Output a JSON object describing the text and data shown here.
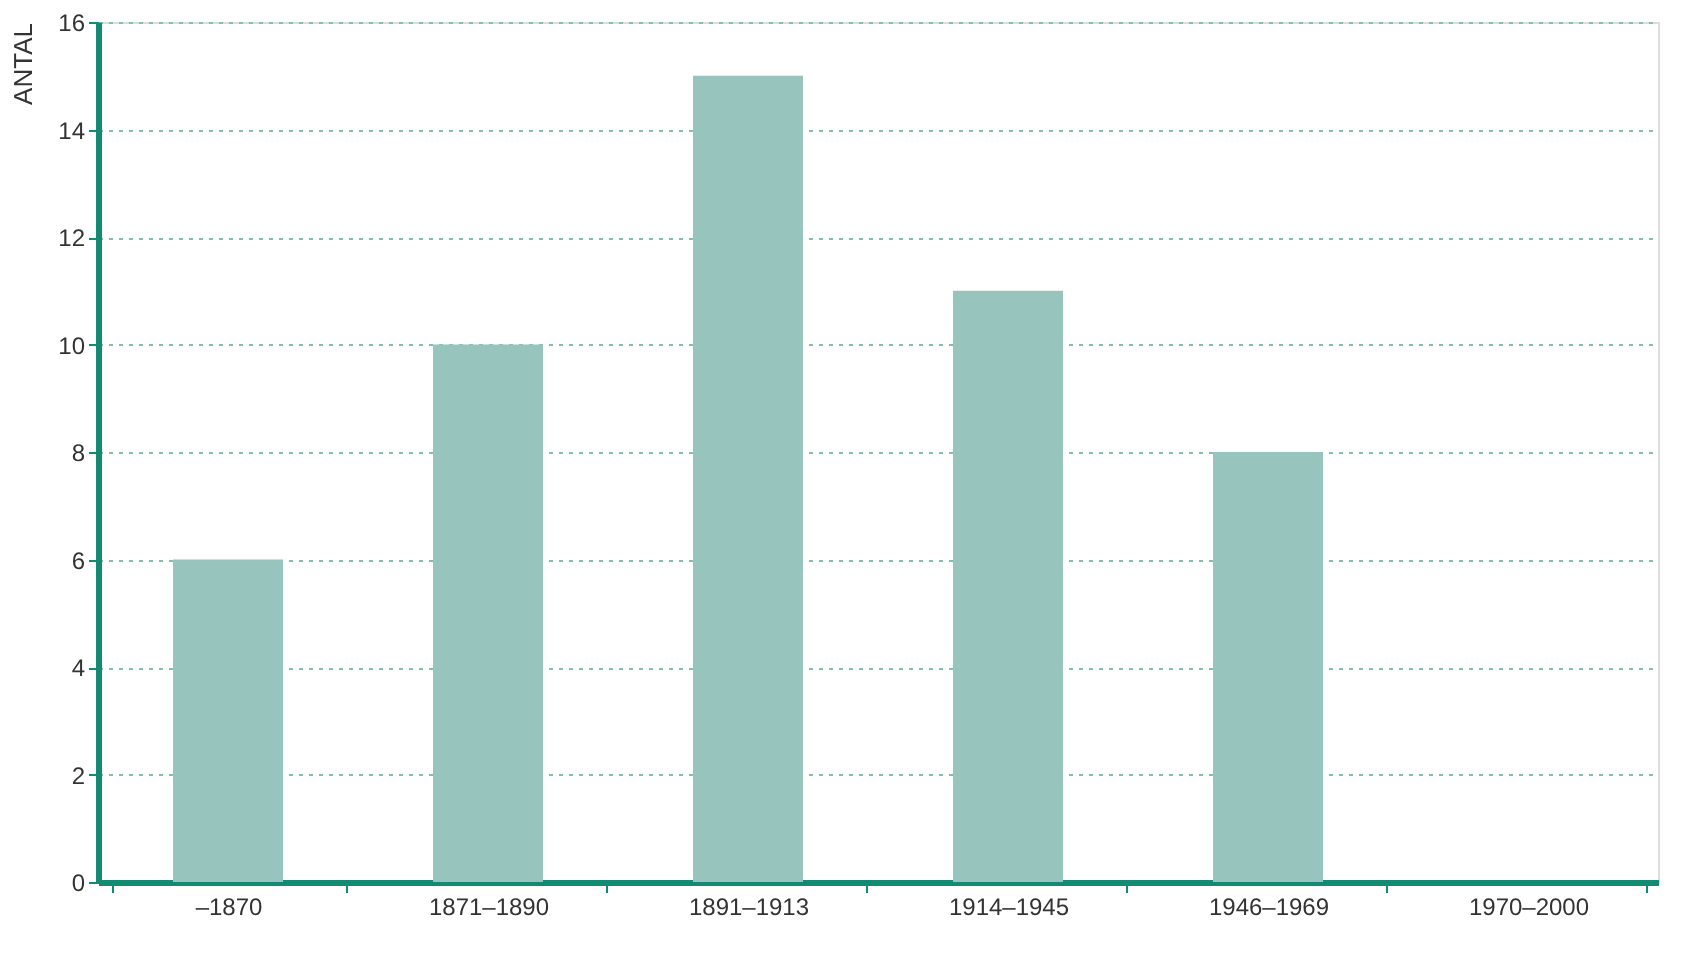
{
  "chart_data": {
    "type": "bar",
    "ylabel": "ANTAL",
    "categories": [
      "–1870",
      "1871–1890",
      "1891–1913",
      "1914–1945",
      "1946–1969",
      "1970–2000"
    ],
    "values": [
      6,
      10,
      15,
      11,
      8,
      0
    ],
    "color": "#97c4bd",
    "ylim": [
      0,
      16
    ],
    "yticks": [
      0,
      2,
      4,
      6,
      8,
      10,
      12,
      14,
      16
    ],
    "grid": "y"
  }
}
